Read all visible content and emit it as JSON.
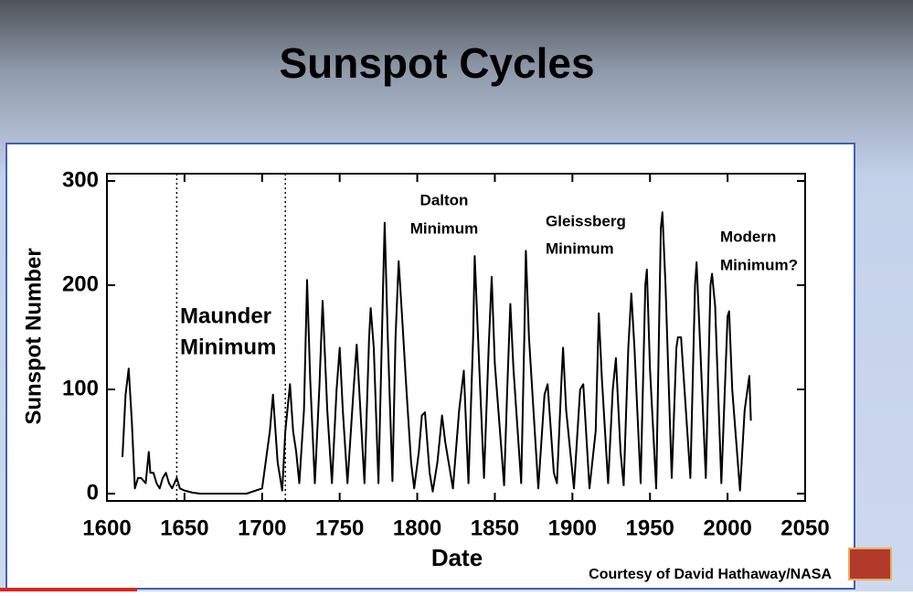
{
  "title": "Sunspot Cycles",
  "credit": "Courtesy of David Hathaway/NASA",
  "chart_data": {
    "type": "line",
    "x_label": "Date",
    "y_label": "Sunspot Number",
    "color": "#000000",
    "grid": false,
    "xlim": [
      1600,
      2050
    ],
    "xticks": [
      1600,
      1650,
      1700,
      1750,
      1800,
      1850,
      1900,
      1950,
      2000,
      2050
    ],
    "ylim": [
      -7,
      307
    ],
    "yticks": [
      0,
      100,
      200,
      300
    ],
    "reference_lines": [
      1645,
      1715
    ],
    "annotations": [
      {
        "lines": [
          "Maunder",
          "Minimum"
        ]
      },
      {
        "lines": [
          "Dalton",
          "Minimum"
        ]
      },
      {
        "lines": [
          "Gleissberg",
          "Minimum"
        ]
      },
      {
        "lines": [
          "Modern",
          "Minimum?"
        ]
      }
    ],
    "x": [
      1610,
      1612,
      1614,
      1616,
      1618,
      1620,
      1622,
      1625,
      1627,
      1628,
      1630,
      1632,
      1634,
      1636,
      1638,
      1640,
      1642,
      1645,
      1647,
      1650,
      1655,
      1660,
      1670,
      1680,
      1690,
      1700,
      1705,
      1707,
      1710,
      1713,
      1715,
      1718,
      1720,
      1722,
      1724,
      1727,
      1729,
      1731,
      1734,
      1737,
      1739,
      1742,
      1745,
      1748,
      1750,
      1752,
      1755,
      1759,
      1761,
      1763,
      1766,
      1769,
      1770,
      1772,
      1775,
      1778,
      1779,
      1781,
      1784,
      1786,
      1788,
      1790,
      1793,
      1796,
      1798,
      1801,
      1803,
      1805,
      1808,
      1810,
      1813,
      1816,
      1818,
      1823,
      1827,
      1830,
      1833,
      1836,
      1837,
      1840,
      1843,
      1846,
      1848,
      1850,
      1856,
      1858,
      1860,
      1862,
      1867,
      1869,
      1870,
      1872,
      1878,
      1882,
      1884,
      1888,
      1890,
      1893,
      1894,
      1896,
      1901,
      1905,
      1907,
      1911,
      1915,
      1917,
      1919,
      1923,
      1926,
      1928,
      1931,
      1933,
      1936,
      1938,
      1940,
      1944,
      1947,
      1948,
      1950,
      1954,
      1957,
      1958,
      1960,
      1964,
      1967,
      1968,
      1970,
      1976,
      1979,
      1980,
      1983,
      1986,
      1989,
      1990,
      1992,
      1996,
      2000,
      2001,
      2003,
      2008,
      2011,
      2014,
      2015
    ],
    "values": [
      35,
      95,
      120,
      70,
      5,
      15,
      15,
      10,
      40,
      20,
      20,
      10,
      5,
      15,
      20,
      10,
      5,
      15,
      5,
      3,
      1,
      0,
      0,
      0,
      0,
      5,
      60,
      95,
      30,
      3,
      60,
      105,
      60,
      40,
      10,
      80,
      205,
      110,
      10,
      105,
      185,
      80,
      10,
      100,
      140,
      80,
      10,
      100,
      143,
      90,
      10,
      150,
      178,
      140,
      10,
      200,
      260,
      150,
      12,
      150,
      223,
      175,
      100,
      30,
      5,
      40,
      75,
      78,
      20,
      2,
      30,
      75,
      50,
      5,
      80,
      118,
      10,
      150,
      228,
      120,
      15,
      140,
      208,
      125,
      8,
      100,
      182,
      120,
      10,
      150,
      233,
      150,
      5,
      95,
      105,
      20,
      10,
      110,
      140,
      80,
      5,
      100,
      105,
      5,
      60,
      173,
      110,
      10,
      100,
      130,
      40,
      8,
      140,
      192,
      140,
      10,
      200,
      215,
      120,
      5,
      255,
      270,
      200,
      15,
      140,
      150,
      150,
      15,
      200,
      222,
      120,
      15,
      200,
      211,
      180,
      10,
      170,
      175,
      100,
      3,
      80,
      113,
      70
    ]
  }
}
